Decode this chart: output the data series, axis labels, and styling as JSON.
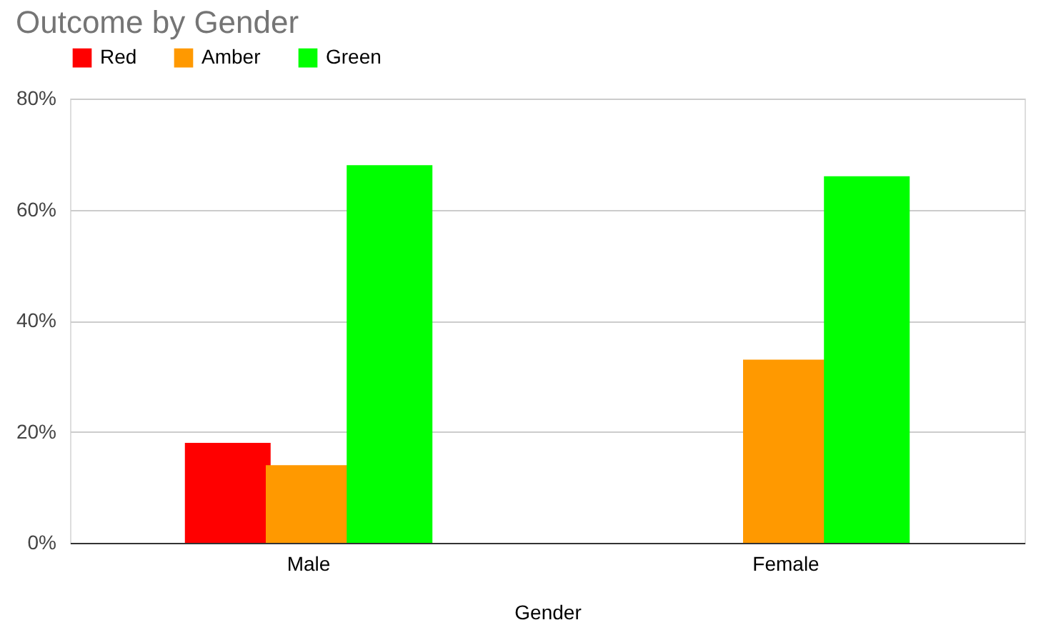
{
  "chart_data": {
    "type": "bar",
    "title": "Outcome by Gender",
    "xlabel": "Gender",
    "categories": [
      "Male",
      "Female"
    ],
    "series": [
      {
        "name": "Red",
        "color": "#ff0000",
        "values": [
          18,
          0
        ]
      },
      {
        "name": "Amber",
        "color": "#ff9900",
        "values": [
          14,
          33
        ]
      },
      {
        "name": "Green",
        "color": "#00ff00",
        "values": [
          68,
          66
        ]
      }
    ],
    "ylim": [
      0,
      80
    ],
    "yticks": [
      {
        "value": 0,
        "label": "0%"
      },
      {
        "value": 20,
        "label": "20%"
      },
      {
        "value": 40,
        "label": "40%"
      },
      {
        "value": 60,
        "label": "60%"
      },
      {
        "value": 80,
        "label": "80%"
      }
    ],
    "grid": "y",
    "legend": "top"
  }
}
